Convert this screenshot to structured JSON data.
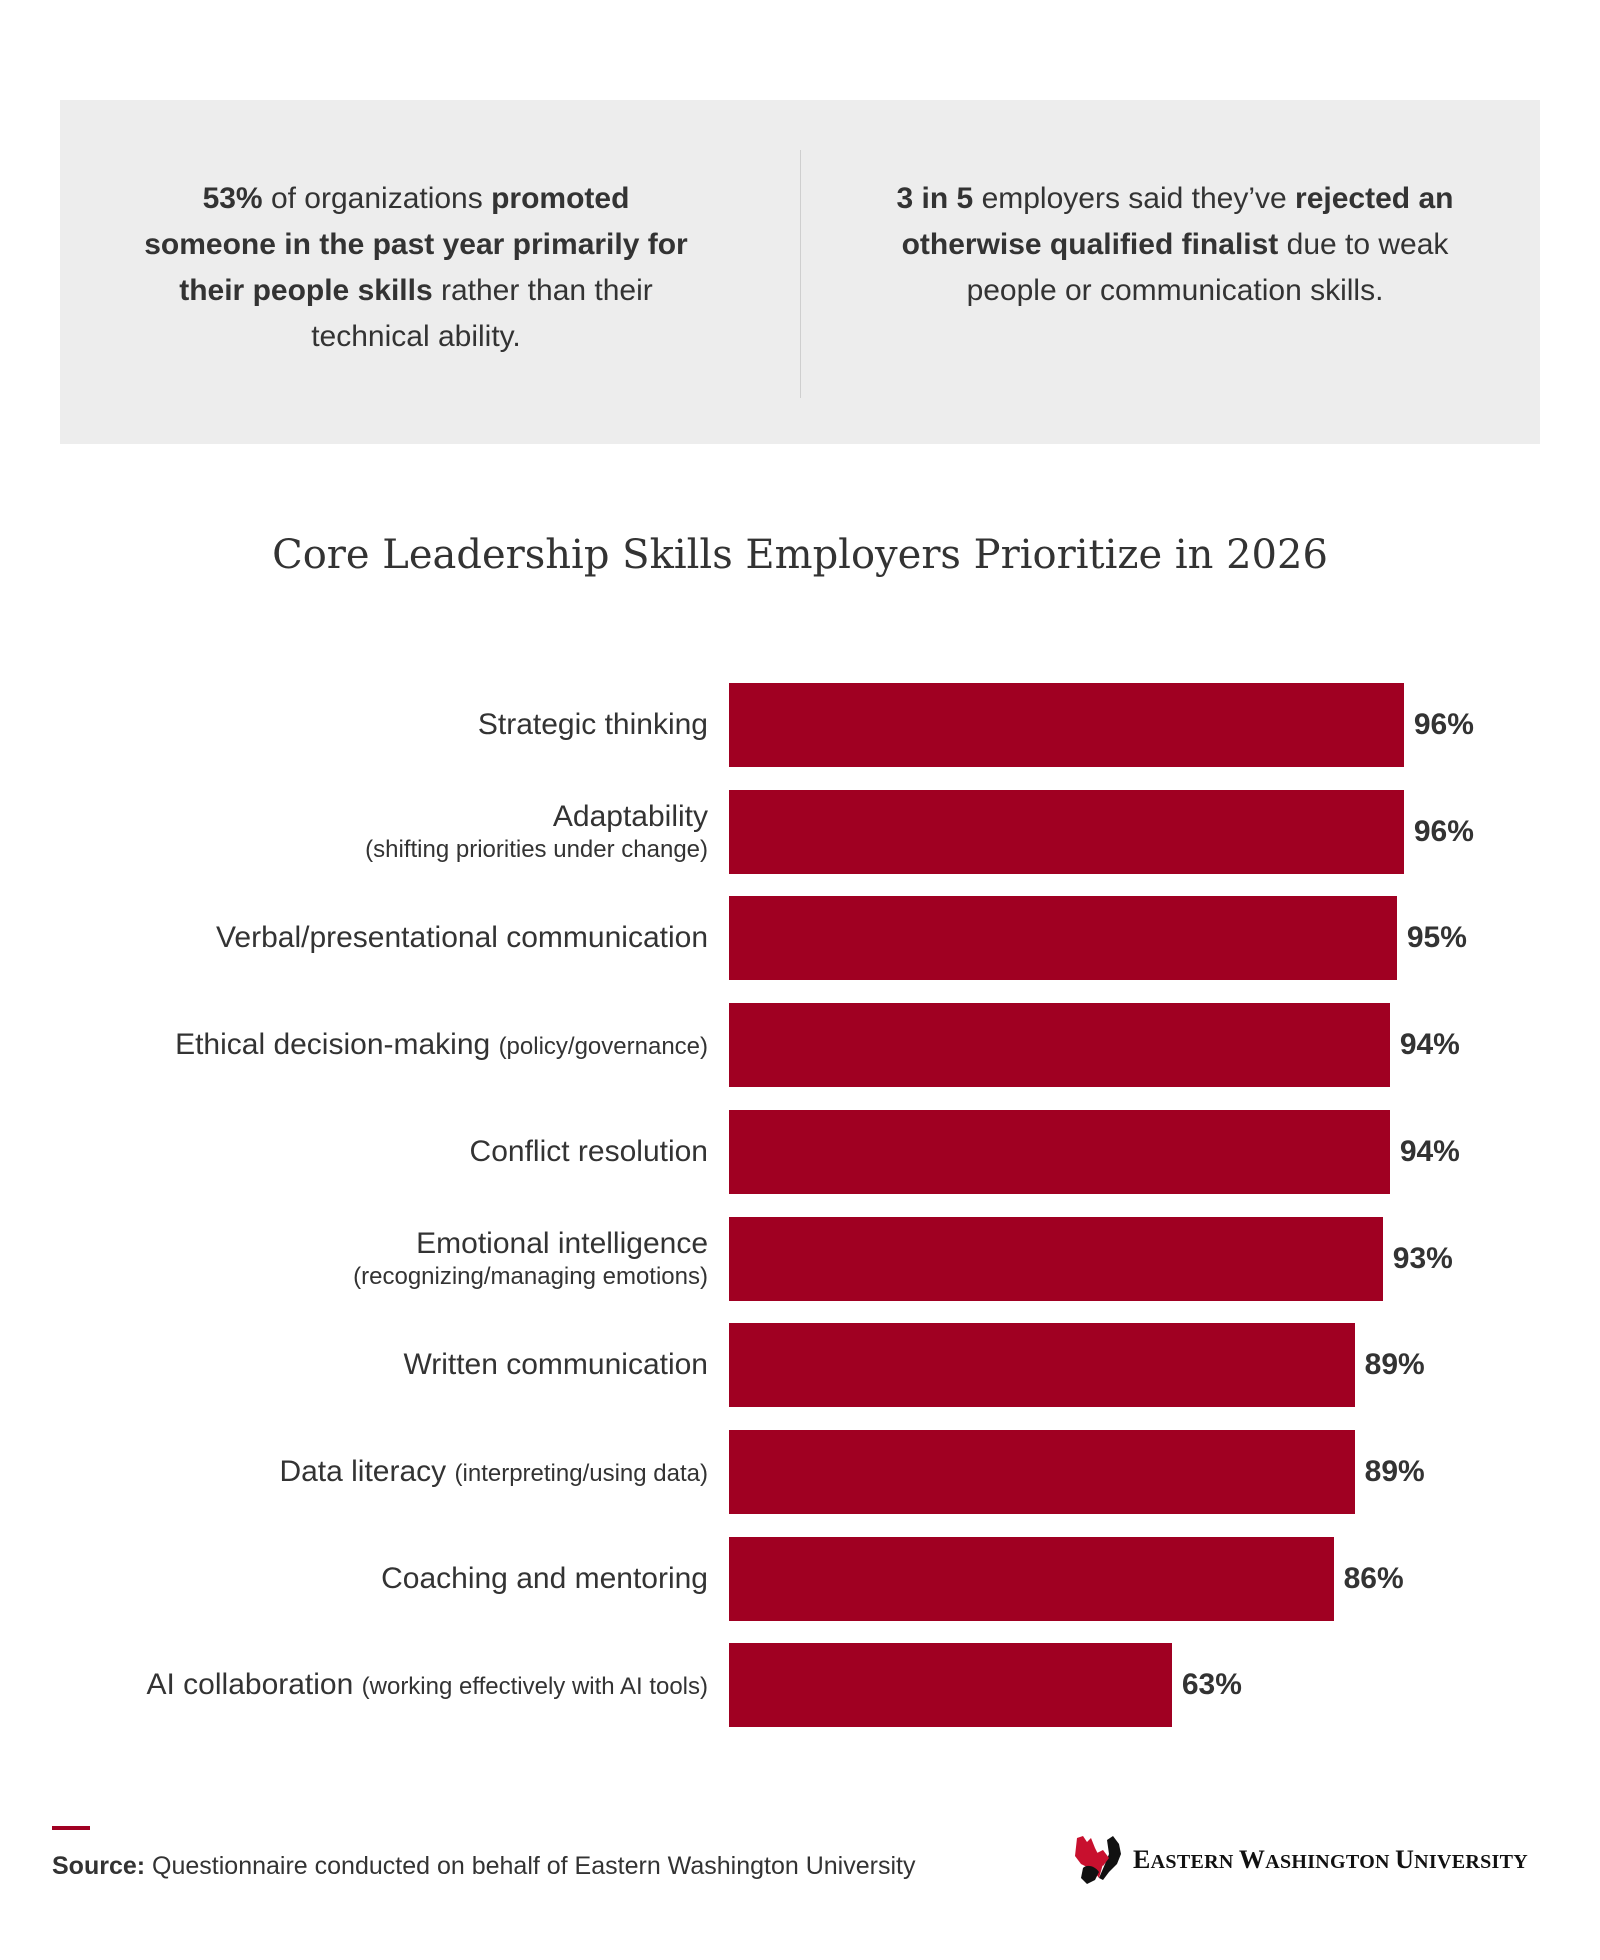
{
  "stats": {
    "left": {
      "p1": "53%",
      "p2": " of organizations ",
      "p3": "promoted someone in the past year primarily for their people skills",
      "p4": " rather than their technical ability."
    },
    "right": {
      "p1": "3 in 5",
      "p2": " employers said they’ve ",
      "p3": "rejected an otherwise qualified finalist",
      "p4": " due to weak people or communication skills."
    }
  },
  "chart_data": {
    "type": "bar",
    "orientation": "horizontal",
    "title": "Core Leadership Skills Employers Prioritize in 2026",
    "unit": "%",
    "color": "#a00022",
    "xlim": [
      0,
      100
    ],
    "categories": [
      {
        "label": "Strategic thinking",
        "sub": "",
        "inline_sub": ""
      },
      {
        "label": "Adaptability",
        "sub": "(shifting priorities under change)",
        "inline_sub": ""
      },
      {
        "label": "Verbal/presentational communication",
        "sub": "",
        "inline_sub": ""
      },
      {
        "label": "Ethical decision-making",
        "sub": "",
        "inline_sub": "(policy/governance)"
      },
      {
        "label": "Conflict resolution",
        "sub": "",
        "inline_sub": ""
      },
      {
        "label": "Emotional intelligence",
        "sub": "(recognizing/managing emotions)",
        "inline_sub": ""
      },
      {
        "label": "Written communication",
        "sub": "",
        "inline_sub": ""
      },
      {
        "label": "Data literacy",
        "sub": "",
        "inline_sub": "(interpreting/using data)"
      },
      {
        "label": "Coaching and mentoring",
        "sub": "",
        "inline_sub": ""
      },
      {
        "label": "AI collaboration",
        "sub": "",
        "inline_sub": "(working effectively with AI tools)"
      }
    ],
    "values": [
      96,
      96,
      95,
      94,
      94,
      93,
      89,
      89,
      86,
      63
    ],
    "value_labels": [
      "96%",
      "96%",
      "95%",
      "94%",
      "94%",
      "93%",
      "89%",
      "89%",
      "86%",
      "63%"
    ]
  },
  "footer": {
    "source_label": "Source:",
    "source_text": " Questionnaire conducted on behalf of Eastern Washington University",
    "logo_text": "Eastern Washington University",
    "logo_parts": [
      "E",
      "ASTERN ",
      "W",
      "ASHINGTON ",
      "U",
      "NIVERSITY"
    ]
  }
}
